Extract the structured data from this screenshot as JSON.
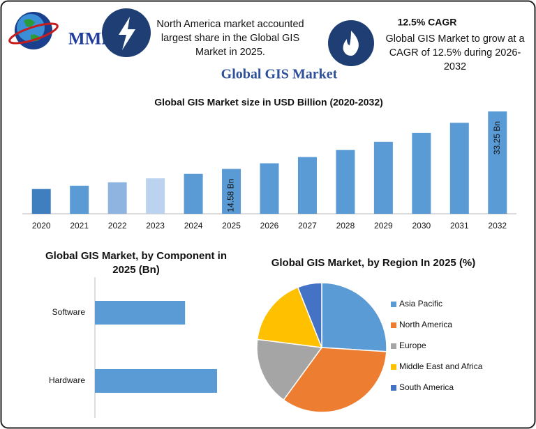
{
  "header": {
    "logo": "MMR",
    "note_left": "North America market accounted largest share in the Global GIS Market in 2025.",
    "cagr": "12.5% CAGR",
    "note_right": "Global GIS Market to grow at a CAGR of 12.5% during 2026-2032",
    "title": "Global GIS Market"
  },
  "chart_data": [
    {
      "type": "bar",
      "title": "Global GIS Market size in USD Billion (2020-2032)",
      "categories": [
        "2020",
        "2021",
        "2022",
        "2023",
        "2024",
        "2025",
        "2026",
        "2027",
        "2028",
        "2029",
        "2030",
        "2031",
        "2032"
      ],
      "values": [
        8.09,
        9.1,
        10.24,
        11.52,
        12.96,
        14.58,
        16.4,
        18.45,
        20.76,
        23.35,
        26.27,
        29.56,
        33.25
      ],
      "value_labels": [
        null,
        null,
        null,
        null,
        null,
        "14.58 Bn",
        null,
        null,
        null,
        null,
        null,
        null,
        "33.25 Bn"
      ],
      "colors": [
        "#3f7fc0",
        "#5b9bd5",
        "#8fb4e0",
        "#bcd3ef",
        "#5b9bd5",
        "#5b9bd5",
        "#5b9bd5",
        "#5b9bd5",
        "#5b9bd5",
        "#5b9bd5",
        "#5b9bd5",
        "#5b9bd5",
        "#5b9bd5"
      ]
    },
    {
      "type": "hbar",
      "title": "Global GIS Market, by Component in 2025 (Bn)",
      "categories": [
        "Software",
        "Hardware"
      ],
      "values": [
        6.2,
        8.4
      ],
      "color": "#5b9bd5"
    },
    {
      "type": "pie",
      "title": "Global GIS Market, by Region In 2025 (%)",
      "categories": [
        "Asia Pacific",
        "North America",
        "Europe",
        "Middle East and Africa",
        "South America"
      ],
      "values": [
        26,
        34,
        17,
        17,
        6
      ],
      "colors": [
        "#5b9bd5",
        "#ed7d31",
        "#a5a5a5",
        "#ffc000",
        "#4472c4"
      ],
      "legend": "right"
    }
  ]
}
